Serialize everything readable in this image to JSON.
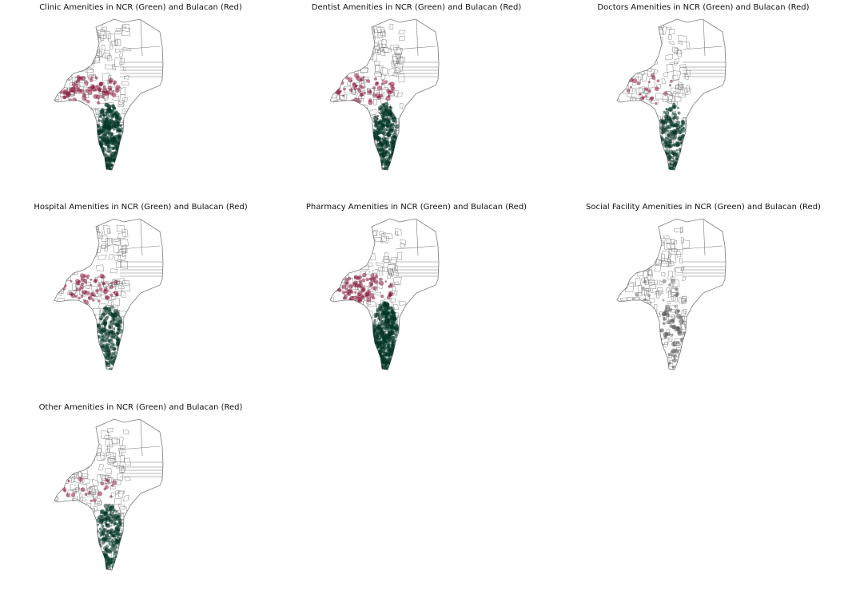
{
  "figure": {
    "colors": {
      "ncr": "#013527",
      "bulacan": "#8b1a3c",
      "boundary": "#7a7a7a",
      "background": "#ffffff"
    },
    "maps": [
      {
        "title": "Clinic Amenities in NCR (Green) and Bulacan (Red)",
        "ncr_level": 0.8,
        "bulacan_level": 0.55
      },
      {
        "title": "Dentist Amenities in NCR (Green) and Bulacan (Red)",
        "ncr_level": 0.7,
        "bulacan_level": 0.45
      },
      {
        "title": "Doctors Amenities in NCR (Green) and Bulacan (Red)",
        "ncr_level": 0.35,
        "bulacan_level": 0.12
      },
      {
        "title": "Hospital Amenities in NCR (Green) and Bulacan (Red)",
        "ncr_level": 0.4,
        "bulacan_level": 0.45
      },
      {
        "title": "Pharmacy Amenities in NCR (Green) and Bulacan (Red)",
        "ncr_level": 1.0,
        "bulacan_level": 0.65
      },
      {
        "title": "Social Facility Amenities in NCR (Green) and Bulacan (Red)",
        "ncr_level": 0.05,
        "bulacan_level": 0.05
      },
      {
        "title": "Other Amenities in NCR (Green) and Bulacan (Red)",
        "ncr_level": 0.45,
        "bulacan_level": 0.12
      }
    ]
  }
}
